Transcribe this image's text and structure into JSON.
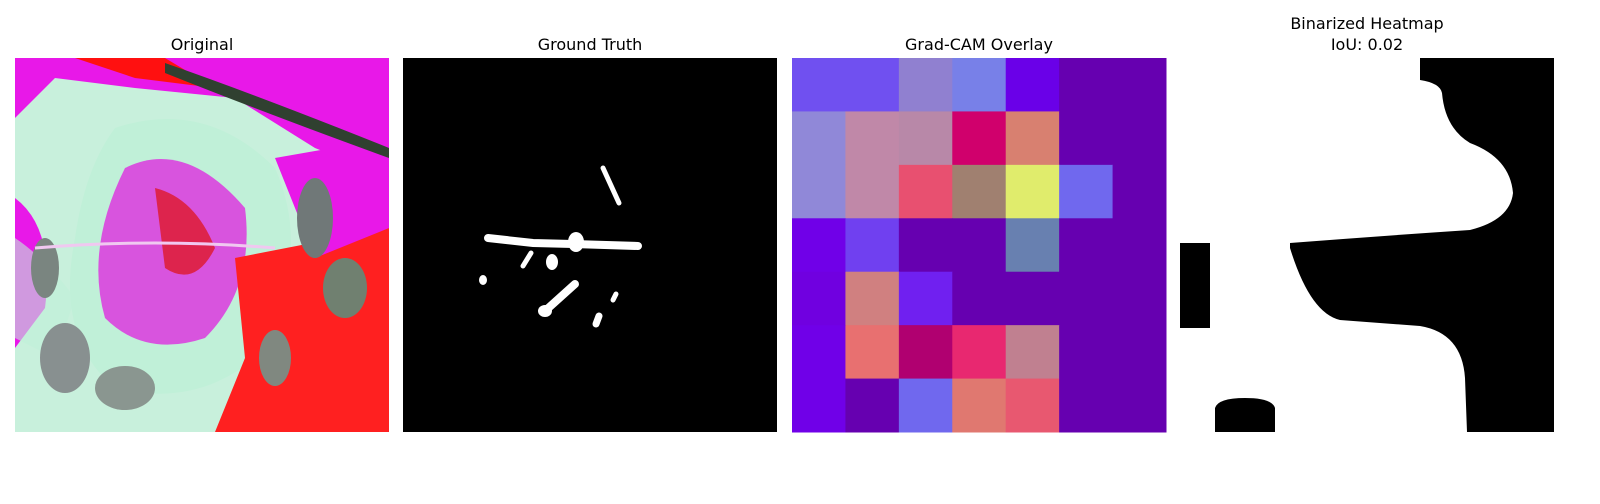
{
  "panels": [
    {
      "title": [
        "Original"
      ]
    },
    {
      "title": [
        "Ground Truth"
      ]
    },
    {
      "title": [
        "Grad-CAM Overlay"
      ]
    },
    {
      "title": [
        "Binarized Heatmap",
        "IoU: 0.02"
      ]
    }
  ]
}
